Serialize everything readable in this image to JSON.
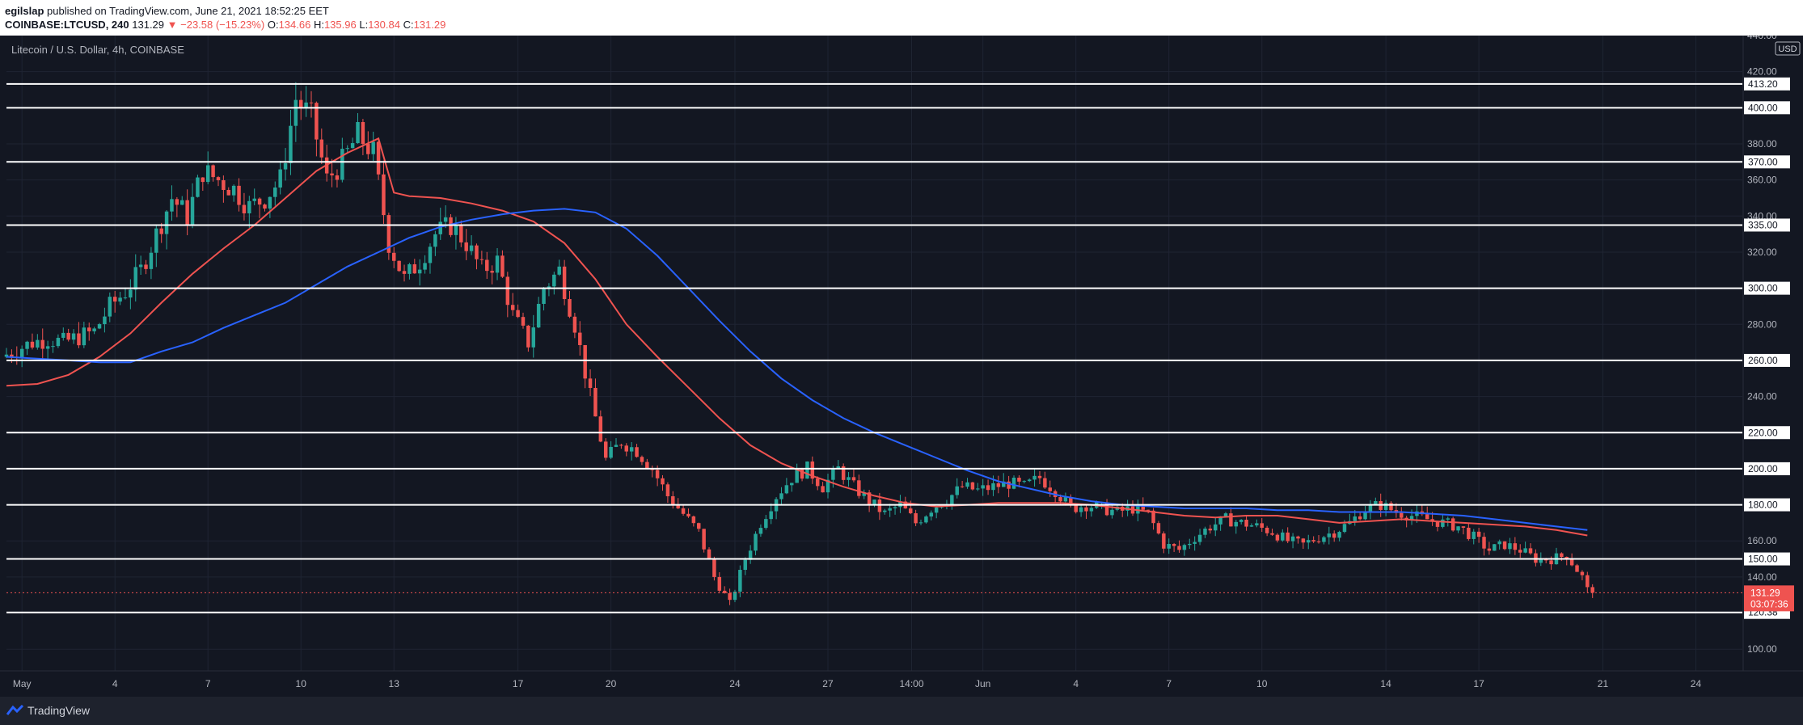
{
  "header": {
    "user": "egilslap",
    "published": " published on TradingView.com, June 21, 2021 18:52:25 EET",
    "symbol": "COINBASE:LTCUSD, 240",
    "last": "131.29",
    "change": "▼ −23.58 (−15.23%)",
    "o_label": "O:",
    "o_value": "134.66",
    "h_label": "H:",
    "h_value": "135.96",
    "l_label": "L:",
    "l_value": "130.84",
    "c_label": "C:",
    "c_value": "131.29"
  },
  "chart_title": "Litecoin / U.S. Dollar, 4h, COINBASE",
  "footer": {
    "brand": "TradingView"
  },
  "colors": {
    "background": "#131722",
    "grid": "#1f2433",
    "up": "#26a69a",
    "down": "#ef5350",
    "ma_red": "#ef5350",
    "ma_blue": "#2962ff",
    "level_line": "#ffffff",
    "price_tag": "#ef5350"
  },
  "chart_data": {
    "type": "candlestick",
    "title": "Litecoin / U.S. Dollar, 4h, COINBASE",
    "currency": "USD",
    "ylim": [
      88,
      440
    ],
    "y_ticks": [
      100,
      140,
      160,
      200,
      240,
      280,
      320,
      340,
      360,
      380,
      420
    ],
    "y_tick_labels": [
      "100.00",
      "140.00",
      "160.00",
      "200.00",
      "240.00",
      "280.00",
      "320.00",
      "340.00",
      "360.00",
      "380.00",
      "420.00"
    ],
    "top_partial_label": "440.00",
    "x_day_range": [
      0,
      56
    ],
    "x_ticks": [
      {
        "day": 0.5,
        "label": "May"
      },
      {
        "day": 3.5,
        "label": "4"
      },
      {
        "day": 6.5,
        "label": "7"
      },
      {
        "day": 9.5,
        "label": "10"
      },
      {
        "day": 12.5,
        "label": "13"
      },
      {
        "day": 16.5,
        "label": "17"
      },
      {
        "day": 19.5,
        "label": "20"
      },
      {
        "day": 23.5,
        "label": "24"
      },
      {
        "day": 26.5,
        "label": "27"
      },
      {
        "day": 29.2,
        "label": "14:00"
      },
      {
        "day": 31.5,
        "label": "Jun"
      },
      {
        "day": 34.5,
        "label": "4"
      },
      {
        "day": 37.5,
        "label": "7"
      },
      {
        "day": 40.5,
        "label": "10"
      },
      {
        "day": 44.5,
        "label": "14"
      },
      {
        "day": 47.5,
        "label": "17"
      },
      {
        "day": 51.5,
        "label": "21"
      },
      {
        "day": 54.5,
        "label": "24"
      }
    ],
    "horizontal_levels": [
      413.2,
      400,
      370,
      335,
      300,
      260,
      220,
      200,
      180,
      150,
      120.38
    ],
    "level_labels": [
      "413.20",
      "400.00",
      "370.00",
      "335.00",
      "300.00",
      "260.00",
      "220.00",
      "200.00",
      "180.00",
      "150.00",
      "120.38"
    ],
    "last_price": {
      "value": 131.29,
      "label": "131.29",
      "countdown": "03:07:36"
    },
    "price_path": [
      [
        0,
        262
      ],
      [
        0.5,
        266
      ],
      [
        1,
        270
      ],
      [
        1.5,
        272
      ],
      [
        2,
        270
      ],
      [
        2.5,
        273
      ],
      [
        3,
        276
      ],
      [
        3.5,
        290
      ],
      [
        4,
        298
      ],
      [
        4.5,
        310
      ],
      [
        5,
        330
      ],
      [
        5.5,
        350
      ],
      [
        6,
        340
      ],
      [
        6.5,
        365
      ],
      [
        7,
        360
      ],
      [
        7.5,
        355
      ],
      [
        8,
        345
      ],
      [
        8.5,
        350
      ],
      [
        9,
        360
      ],
      [
        9.5,
        405
      ],
      [
        10,
        395
      ],
      [
        10.5,
        360
      ],
      [
        11,
        370
      ],
      [
        11.5,
        385
      ],
      [
        12,
        375
      ],
      [
        12.5,
        325
      ],
      [
        13,
        305
      ],
      [
        13.5,
        315
      ],
      [
        14,
        330
      ],
      [
        14.5,
        335
      ],
      [
        15,
        325
      ],
      [
        15.5,
        310
      ],
      [
        16,
        315
      ],
      [
        16.5,
        285
      ],
      [
        17,
        270
      ],
      [
        17.5,
        300
      ],
      [
        18,
        310
      ],
      [
        18.5,
        280
      ],
      [
        19,
        240
      ],
      [
        19.5,
        205
      ],
      [
        20,
        215
      ],
      [
        20.5,
        210
      ],
      [
        21,
        200
      ],
      [
        21.5,
        185
      ],
      [
        22,
        175
      ],
      [
        22.5,
        165
      ],
      [
        23,
        140
      ],
      [
        23.5,
        125
      ],
      [
        24,
        150
      ],
      [
        24.5,
        170
      ],
      [
        25,
        185
      ],
      [
        25.5,
        195
      ],
      [
        26,
        200
      ],
      [
        26.5,
        190
      ],
      [
        27,
        200
      ],
      [
        27.5,
        190
      ],
      [
        28,
        182
      ],
      [
        28.5,
        175
      ],
      [
        29,
        180
      ],
      [
        29.5,
        170
      ],
      [
        30,
        178
      ],
      [
        30.5,
        183
      ],
      [
        31,
        190
      ],
      [
        31.5,
        188
      ],
      [
        32,
        190
      ],
      [
        32.5,
        192
      ],
      [
        33,
        190
      ],
      [
        33.5,
        195
      ],
      [
        34,
        188
      ],
      [
        34.5,
        178
      ],
      [
        35,
        180
      ],
      [
        35.5,
        178
      ],
      [
        36,
        176
      ],
      [
        36.5,
        178
      ],
      [
        37,
        175
      ],
      [
        37.5,
        158
      ],
      [
        38,
        155
      ],
      [
        38.5,
        162
      ],
      [
        39,
        168
      ],
      [
        39.5,
        172
      ],
      [
        40,
        170
      ],
      [
        40.5,
        168
      ],
      [
        41,
        165
      ],
      [
        41.5,
        160
      ],
      [
        42,
        158
      ],
      [
        42.5,
        162
      ],
      [
        43,
        165
      ],
      [
        43.5,
        170
      ],
      [
        44,
        178
      ],
      [
        44.5,
        180
      ],
      [
        45,
        176
      ],
      [
        45.5,
        174
      ],
      [
        46,
        172
      ],
      [
        46.5,
        170
      ],
      [
        47,
        168
      ],
      [
        47.5,
        162
      ],
      [
        48,
        155
      ],
      [
        48.5,
        158
      ],
      [
        49,
        155
      ],
      [
        49.5,
        150
      ],
      [
        50,
        150
      ],
      [
        50.5,
        152
      ],
      [
        51,
        140
      ],
      [
        51.2,
        131.29
      ]
    ],
    "ma_red": [
      [
        0,
        246
      ],
      [
        1,
        247
      ],
      [
        2,
        252
      ],
      [
        3,
        262
      ],
      [
        4,
        275
      ],
      [
        5,
        292
      ],
      [
        6,
        308
      ],
      [
        7,
        322
      ],
      [
        8,
        335
      ],
      [
        9,
        350
      ],
      [
        10,
        365
      ],
      [
        11,
        375
      ],
      [
        12,
        383
      ],
      [
        12.5,
        353
      ],
      [
        13,
        351
      ],
      [
        14,
        350
      ],
      [
        15,
        347
      ],
      [
        16,
        343
      ],
      [
        17,
        337
      ],
      [
        18,
        325
      ],
      [
        19,
        305
      ],
      [
        20,
        280
      ],
      [
        21,
        262
      ],
      [
        22,
        245
      ],
      [
        23,
        228
      ],
      [
        24,
        213
      ],
      [
        25,
        203
      ],
      [
        26,
        196
      ],
      [
        27,
        190
      ],
      [
        28,
        185
      ],
      [
        29,
        181
      ],
      [
        30,
        179
      ],
      [
        31,
        180
      ],
      [
        32,
        181
      ],
      [
        33,
        181
      ],
      [
        34,
        181
      ],
      [
        35,
        180
      ],
      [
        36,
        178
      ],
      [
        37,
        176
      ],
      [
        38,
        174
      ],
      [
        39,
        173
      ],
      [
        40,
        174
      ],
      [
        41,
        174
      ],
      [
        42,
        172
      ],
      [
        43,
        170
      ],
      [
        44,
        171
      ],
      [
        45,
        172
      ],
      [
        46,
        171
      ],
      [
        47,
        170
      ],
      [
        48,
        169
      ],
      [
        49,
        168
      ],
      [
        50,
        166
      ],
      [
        51,
        163
      ]
    ],
    "ma_blue": [
      [
        0,
        262
      ],
      [
        1,
        261
      ],
      [
        2,
        260
      ],
      [
        3,
        259
      ],
      [
        4,
        259
      ],
      [
        5,
        265
      ],
      [
        6,
        270
      ],
      [
        7,
        278
      ],
      [
        8,
        285
      ],
      [
        9,
        292
      ],
      [
        10,
        302
      ],
      [
        11,
        312
      ],
      [
        12,
        320
      ],
      [
        13,
        328
      ],
      [
        14,
        334
      ],
      [
        15,
        338
      ],
      [
        16,
        341
      ],
      [
        17,
        343
      ],
      [
        18,
        344
      ],
      [
        19,
        342
      ],
      [
        20,
        333
      ],
      [
        21,
        318
      ],
      [
        22,
        300
      ],
      [
        23,
        282
      ],
      [
        24,
        265
      ],
      [
        25,
        250
      ],
      [
        26,
        238
      ],
      [
        27,
        228
      ],
      [
        28,
        220
      ],
      [
        29,
        213
      ],
      [
        30,
        206
      ],
      [
        31,
        199
      ],
      [
        32,
        193
      ],
      [
        33,
        189
      ],
      [
        34,
        185
      ],
      [
        35,
        182
      ],
      [
        36,
        180
      ],
      [
        37,
        179
      ],
      [
        38,
        178
      ],
      [
        39,
        178
      ],
      [
        40,
        178
      ],
      [
        41,
        177
      ],
      [
        42,
        177
      ],
      [
        43,
        176
      ],
      [
        44,
        176
      ],
      [
        45,
        176
      ],
      [
        46,
        175
      ],
      [
        47,
        174
      ],
      [
        48,
        172
      ],
      [
        49,
        170
      ],
      [
        50,
        168
      ],
      [
        51,
        166
      ]
    ]
  }
}
